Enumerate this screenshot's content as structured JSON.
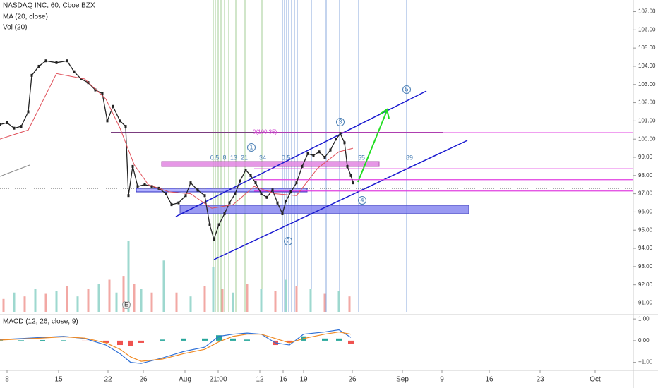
{
  "chart_data": {
    "type": "candlestick-line",
    "title": "NASDAQ INC, 60, Cboe BZX",
    "indicators": [
      "MA (20, close)",
      "Vol (20)"
    ],
    "macd_title": "MACD (12, 26, close, 9)",
    "xlim": [
      0,
      897
    ],
    "xticks": [
      {
        "value": 10,
        "label": "8"
      },
      {
        "value": 83,
        "label": "15"
      },
      {
        "value": 153,
        "label": "22"
      },
      {
        "value": 203,
        "label": "26"
      },
      {
        "value": 262,
        "label": "Aug"
      },
      {
        "value": 309,
        "label": "21:00"
      },
      {
        "value": 368,
        "label": "12"
      },
      {
        "value": 401,
        "label": "16"
      },
      {
        "value": 430,
        "label": "19"
      },
      {
        "value": 499,
        "label": "26"
      },
      {
        "value": 570,
        "label": "Sep"
      },
      {
        "value": 626,
        "label": "9"
      },
      {
        "value": 693,
        "label": "16"
      },
      {
        "value": 765,
        "label": "23"
      },
      {
        "value": 843,
        "label": "Oct"
      }
    ],
    "ylim": [
      90.36,
      107.64
    ],
    "yticks": [
      {
        "value": 107,
        "label": "107.00"
      },
      {
        "value": 106,
        "label": "106.00"
      },
      {
        "value": 105,
        "label": "105.00"
      },
      {
        "value": 104,
        "label": "104.00"
      },
      {
        "value": 103,
        "label": "103.00"
      },
      {
        "value": 102,
        "label": "102.00"
      },
      {
        "value": 101,
        "label": "101.00"
      },
      {
        "value": 100,
        "label": "100.00"
      },
      {
        "value": 99,
        "label": "99.00"
      },
      {
        "value": 98,
        "label": "98.00"
      },
      {
        "value": 97,
        "label": "97.00"
      },
      {
        "value": 96,
        "label": "96.00"
      },
      {
        "value": 95,
        "label": "95.00"
      },
      {
        "value": 94,
        "label": "94.00"
      },
      {
        "value": 93,
        "label": "93.00"
      },
      {
        "value": 92,
        "label": "92.00"
      },
      {
        "value": 91,
        "label": "91.00"
      }
    ],
    "y2lim": [
      -1.37,
      1.2
    ],
    "y2ticks": [
      {
        "value": 1,
        "label": "1.00"
      },
      {
        "value": 0,
        "label": "0.00"
      },
      {
        "value": -1,
        "label": "−1.00"
      }
    ],
    "series": [
      {
        "name": "Price",
        "color": "#222222",
        "x": [
          0,
          10,
          20,
          30,
          40,
          45,
          55,
          65,
          80,
          95,
          105,
          115,
          125,
          135,
          145,
          152,
          160,
          170,
          178,
          182,
          188,
          195,
          205,
          215,
          225,
          235,
          243,
          253,
          263,
          270,
          280,
          290,
          297,
          303,
          310,
          318,
          325,
          333,
          340,
          348,
          355,
          362,
          370,
          378,
          386,
          393,
          400,
          405,
          412,
          420,
          428,
          436,
          444,
          452,
          460,
          468,
          476,
          482,
          488,
          492,
          497,
          500
        ],
        "values": [
          100.8,
          100.9,
          100.6,
          100.7,
          101.5,
          103.5,
          104.0,
          104.3,
          104.2,
          104.3,
          103.7,
          103.3,
          103.1,
          102.7,
          102.5,
          101.0,
          101.8,
          101.0,
          100.7,
          96.9,
          98.5,
          97.4,
          97.5,
          97.4,
          97.3,
          97.0,
          96.4,
          96.5,
          96.9,
          97.6,
          97.2,
          96.9,
          95.3,
          94.5,
          95.3,
          95.9,
          96.5,
          97.0,
          97.7,
          98.3,
          98.0,
          97.6,
          97.0,
          96.8,
          97.2,
          96.5,
          95.9,
          96.6,
          97.1,
          97.6,
          98.5,
          99.2,
          99.1,
          99.3,
          99.0,
          99.4,
          100.0,
          100.3,
          99.8,
          98.5,
          98.0,
          97.6
        ]
      },
      {
        "name": "MA",
        "color": "#e0505a",
        "x": [
          0,
          40,
          80,
          120,
          150,
          170,
          190,
          210,
          240,
          270,
          300,
          330,
          360,
          390,
          420,
          450,
          480,
          500
        ],
        "values": [
          100,
          100.5,
          103.6,
          103.3,
          102.2,
          100.6,
          98.6,
          97.5,
          97.1,
          97.0,
          96.2,
          96.4,
          97.4,
          97.0,
          96.9,
          98.4,
          99.3,
          99.5
        ]
      }
    ],
    "volume": {
      "color": "#f2a8a4",
      "x": [
        5,
        20,
        35,
        50,
        65,
        80,
        95,
        110,
        125,
        140,
        155,
        165,
        175,
        182,
        190,
        200,
        215,
        232,
        250,
        270,
        290,
        302,
        315,
        330,
        350,
        370,
        390,
        405,
        420,
        440,
        460,
        480,
        495
      ],
      "values": [
        10,
        15,
        12,
        18,
        14,
        16,
        20,
        12,
        18,
        22,
        25,
        15,
        28,
        55,
        22,
        18,
        15,
        40,
        15,
        12,
        20,
        35,
        18,
        15,
        22,
        18,
        16,
        25,
        20,
        18,
        14,
        16,
        12
      ]
    },
    "macd": {
      "x": [
        0,
        30,
        60,
        90,
        120,
        150,
        170,
        185,
        200,
        230,
        260,
        290,
        310,
        330,
        350,
        370,
        390,
        410,
        430,
        460,
        480,
        497
      ],
      "macd": {
        "color": "#2d6fd6",
        "values": [
          0.05,
          0.1,
          0.15,
          0.2,
          0.1,
          -0.2,
          -0.6,
          -1.0,
          -1.05,
          -0.8,
          -0.5,
          -0.3,
          0.2,
          0.3,
          0.35,
          0.3,
          -0.1,
          -0.2,
          0.3,
          0.4,
          0.5,
          0.15
        ]
      },
      "signal": {
        "color": "#f08a24",
        "values": [
          0.03,
          0.08,
          0.12,
          0.18,
          0.12,
          -0.1,
          -0.4,
          -0.75,
          -0.95,
          -0.85,
          -0.6,
          -0.4,
          -0.05,
          0.2,
          0.3,
          0.3,
          0.1,
          -0.1,
          0.1,
          0.3,
          0.4,
          0.3
        ]
      },
      "histogram": {
        "up_color": "#26a69a",
        "down_color": "#ef5350",
        "values": [
          0.02,
          0.02,
          0.03,
          0.02,
          -0.02,
          -0.1,
          -0.2,
          -0.25,
          -0.1,
          0.05,
          0.1,
          0.1,
          0.25,
          0.1,
          0.05,
          0,
          -0.2,
          -0.1,
          0.2,
          0.1,
          0.1,
          -0.15
        ]
      }
    },
    "levels": [
      {
        "value": 100.35,
        "label": "0(100.35)"
      },
      {
        "value": 98.37
      },
      {
        "value": 97.77
      },
      {
        "value": 97.15
      }
    ],
    "annotations": [
      "0.5",
      "8",
      "13",
      "21",
      "34",
      "0.5",
      "55",
      "89",
      "1",
      "2",
      "3",
      "4",
      "5",
      "E"
    ]
  }
}
